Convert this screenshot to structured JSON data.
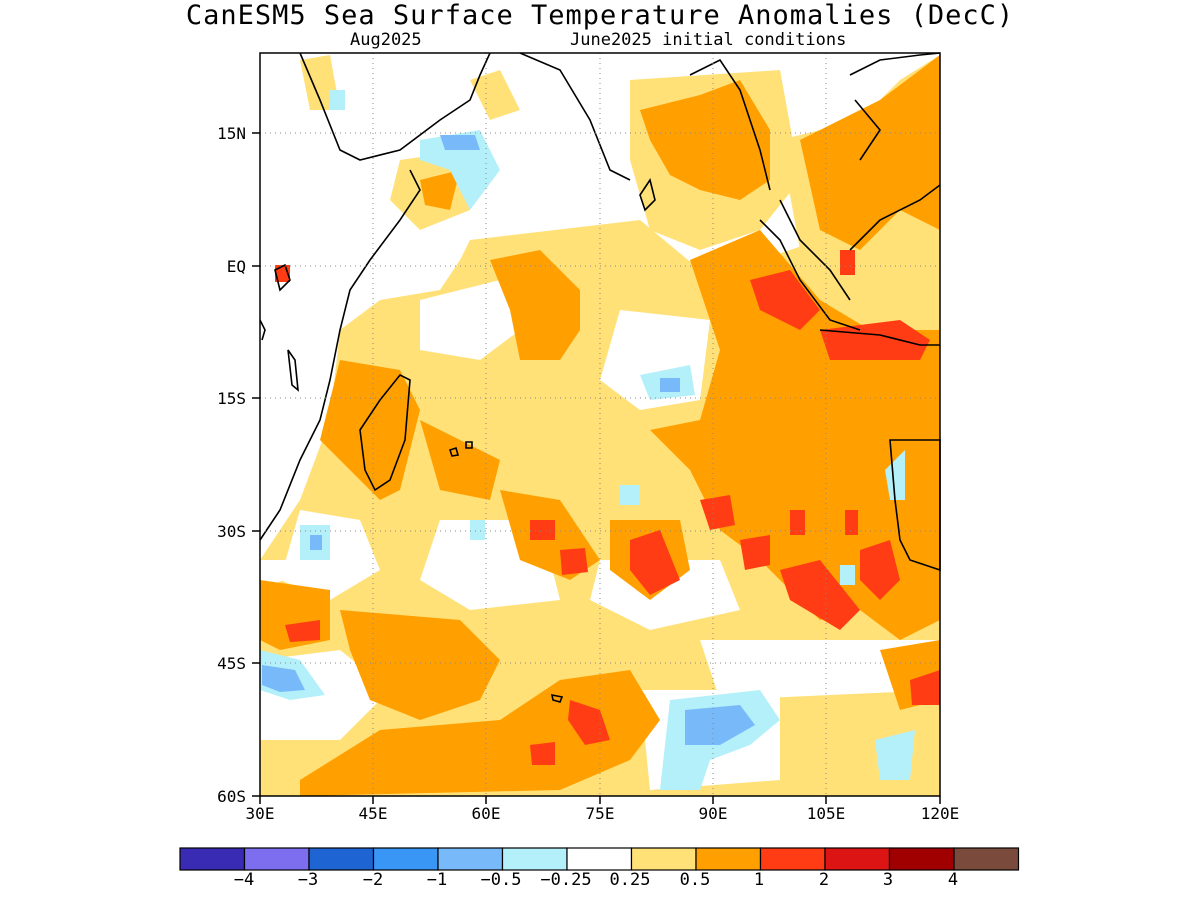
{
  "title": "CanESM5 Sea Surface Temperature Anomalies (DecC)",
  "subtitle_left": "Aug2025",
  "subtitle_right": "June2025 initial conditions",
  "lat_labels": [
    "15N",
    "EQ",
    "15S",
    "30S",
    "45S",
    "60S"
  ],
  "lon_labels": [
    "30E",
    "45E",
    "60E",
    "75E",
    "90E",
    "105E",
    "120E"
  ],
  "colorbar": {
    "colors": [
      "#3a2bb5",
      "#7d6ef0",
      "#1e64d2",
      "#3a96f5",
      "#78b9fa",
      "#b4f0fa",
      "#ffffff",
      "#ffe178",
      "#ffa000",
      "#ff3c14",
      "#dc1414",
      "#a00000",
      "#7a4a3c"
    ],
    "labels": [
      "-4",
      "-3",
      "-2",
      "-1",
      "-0.5",
      "-0.25",
      "0.25",
      "0.5",
      "1",
      "2",
      "3",
      "4"
    ]
  }
}
